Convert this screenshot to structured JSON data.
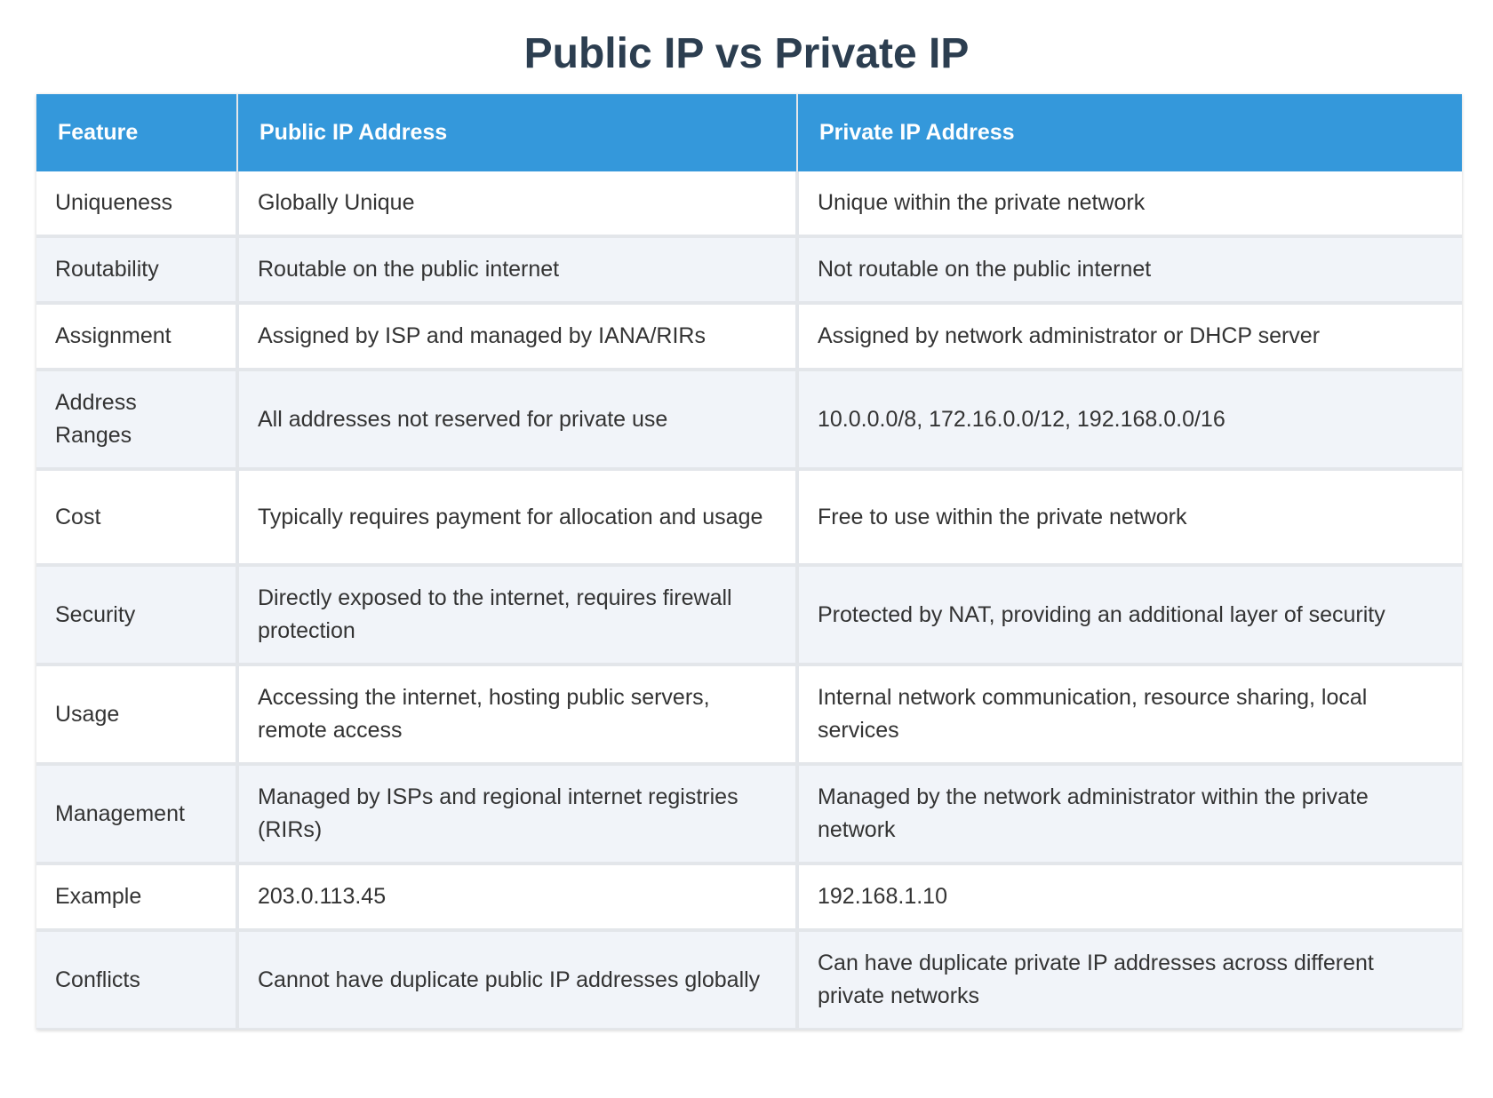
{
  "title": "Public IP vs Private IP",
  "table": {
    "headers": [
      "Feature",
      "Public IP Address",
      "Private IP Address"
    ],
    "rows": [
      [
        "Uniqueness",
        "Globally Unique",
        "Unique within the private network"
      ],
      [
        "Routability",
        "Routable on the public internet",
        "Not routable on the public internet"
      ],
      [
        "Assignment",
        "Assigned by ISP and managed by IANA/RIRs",
        "Assigned by network administrator or DHCP server"
      ],
      [
        "Address Ranges",
        "All addresses not reserved for private use",
        "10.0.0.0/8, 172.16.0.0/12, 192.168.0.0/16"
      ],
      [
        "Cost",
        "Typically requires payment for allocation and usage",
        "Free to use within the private network"
      ],
      [
        "Security",
        "Directly exposed to the internet, requires firewall protection",
        "Protected by NAT, providing an additional layer of security"
      ],
      [
        "Usage",
        "Accessing the internet, hosting public servers, remote access",
        "Internal network communication, resource sharing, local services"
      ],
      [
        "Management",
        "Managed by ISPs and regional internet registries (RIRs)",
        "Managed by the network administrator within the private network"
      ],
      [
        "Example",
        "203.0.113.45",
        "192.168.1.10"
      ],
      [
        "Conflicts",
        "Cannot have duplicate public IP addresses globally",
        "Can have duplicate private IP addresses across different private networks"
      ]
    ]
  }
}
